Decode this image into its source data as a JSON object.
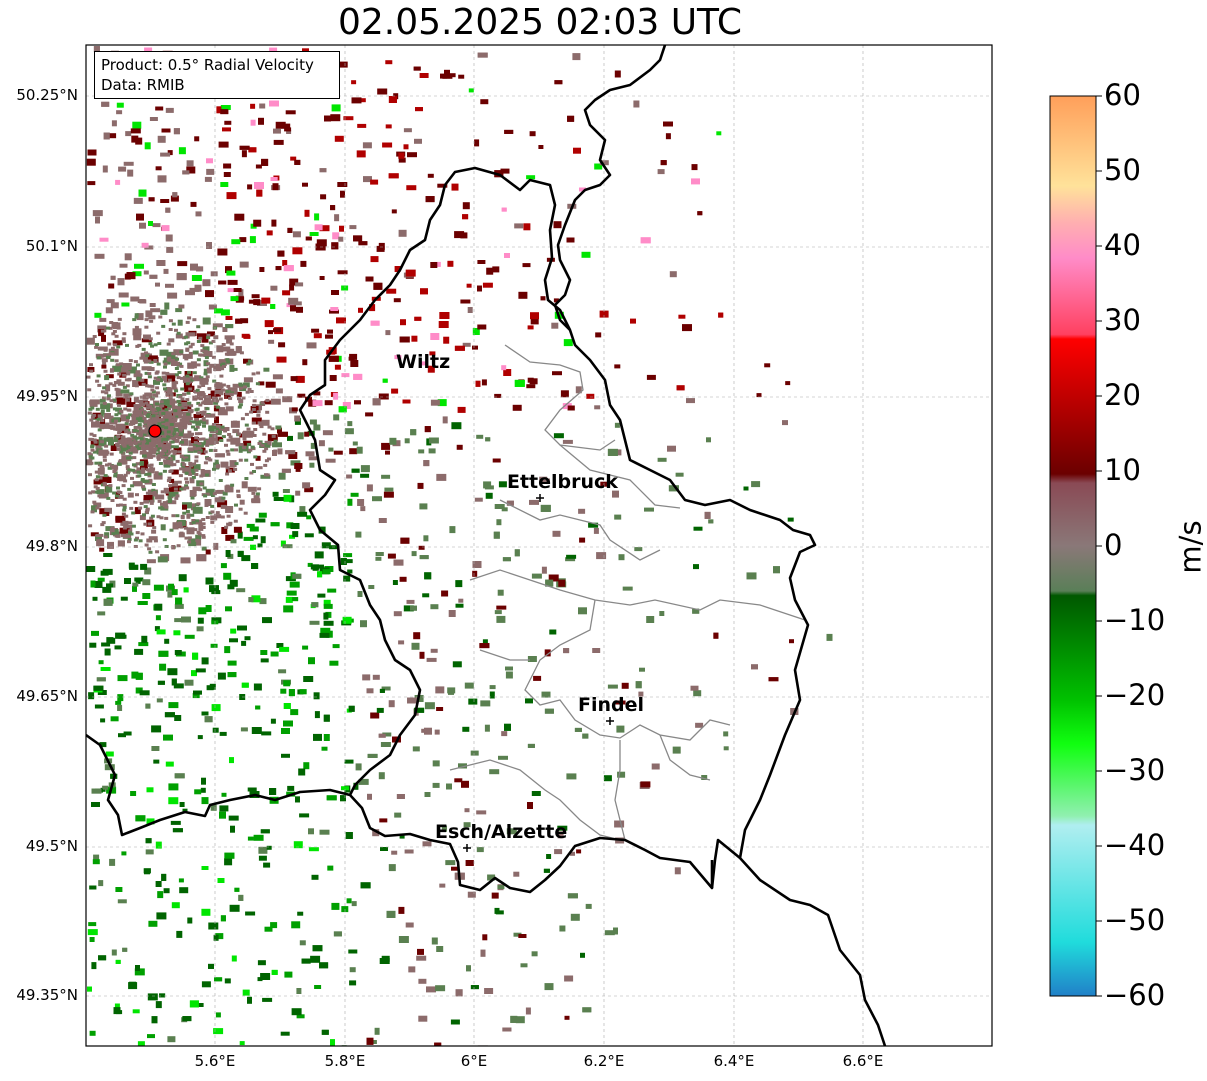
{
  "title": "02.05.2025 02:03 UTC",
  "info": {
    "product": "Product: 0.5° Radial Velocity",
    "data": "Data: RMIB"
  },
  "lat_ticks": [
    "50.25°N",
    "50.1°N",
    "49.95°N",
    "49.8°N",
    "49.65°N",
    "49.5°N",
    "49.35°N"
  ],
  "lon_ticks": [
    "5.6°E",
    "5.8°E",
    "6°E",
    "6.2°E",
    "6.4°E",
    "6.6°E"
  ],
  "cities": [
    {
      "name": "Wiltz"
    },
    {
      "name": "Ettelbruck"
    },
    {
      "name": "Findel"
    },
    {
      "name": "Esch/Alzette"
    }
  ],
  "colorbar": {
    "unit": "m/s",
    "ticks": [
      "60",
      "50",
      "40",
      "30",
      "20",
      "10",
      "0",
      "−10",
      "−20",
      "−30",
      "−40",
      "−50",
      "−60"
    ],
    "range": [
      -60,
      60
    ],
    "colors": {
      "orange": "#ff9f5a",
      "peach": "#ffd9a0",
      "pink": "#ff8cc8",
      "red": "#ff0000",
      "dark_red": "#6b0000",
      "grayish": "#8c6b6b",
      "gray_green": "#5a8050",
      "dark_green": "#006400",
      "green": "#00e600",
      "light_green": "#7aef9a",
      "cyan": "#20dcdc",
      "blue": "#2080c0"
    }
  },
  "radar_site": {
    "color": "#ff0000"
  }
}
